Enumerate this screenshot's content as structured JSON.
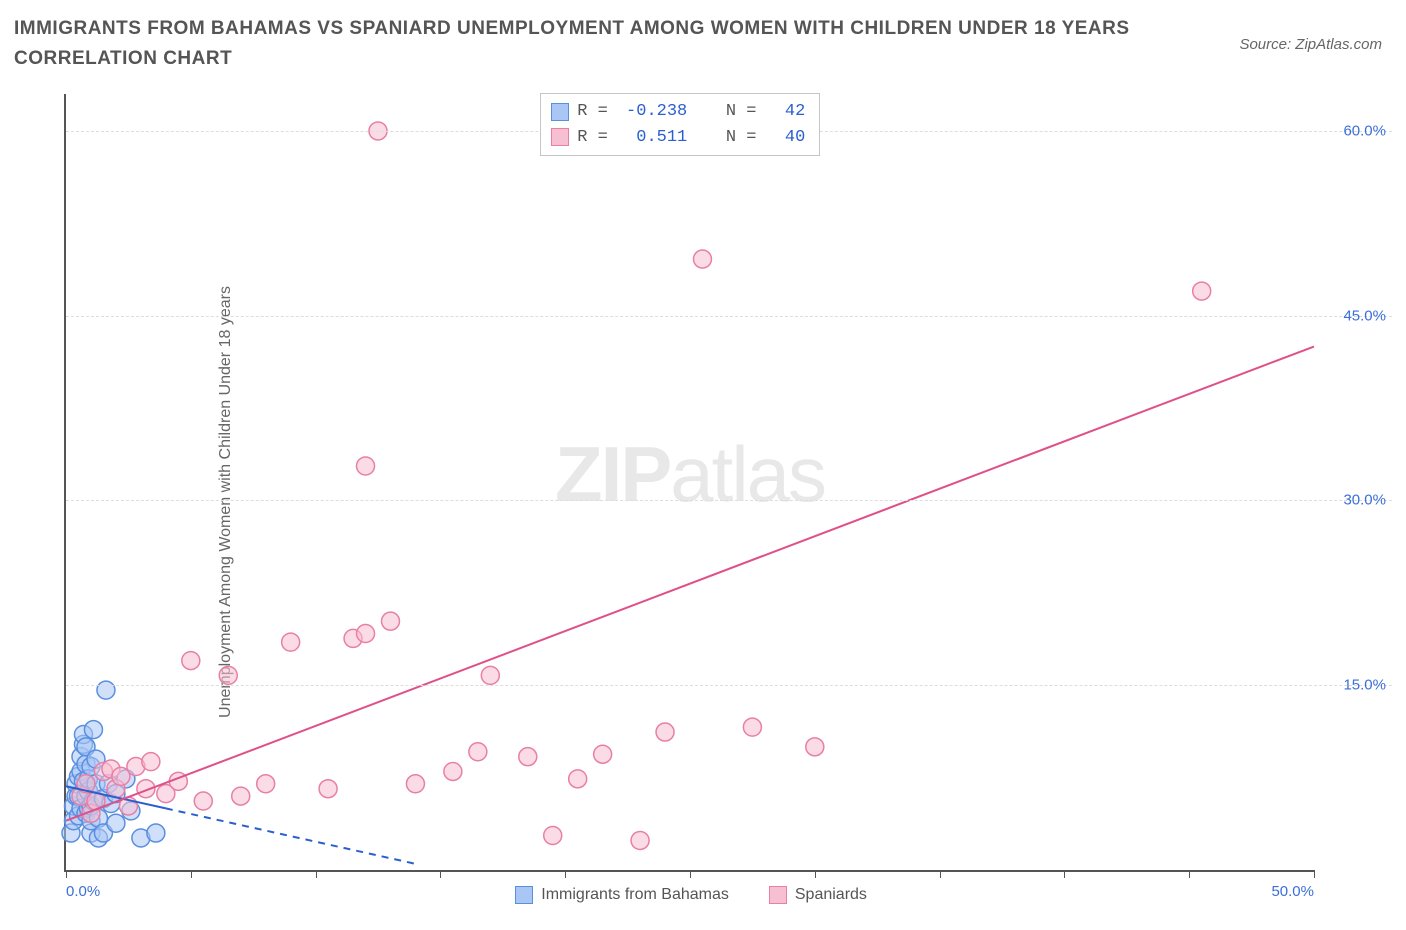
{
  "title": "IMMIGRANTS FROM BAHAMAS VS SPANIARD UNEMPLOYMENT AMONG WOMEN WITH CHILDREN UNDER 18 YEARS CORRELATION CHART",
  "source": "Source: ZipAtlas.com",
  "y_label": "Unemployment Among Women with Children Under 18 years",
  "watermark_bold": "ZIP",
  "watermark_rest": "atlas",
  "chart": {
    "type": "scatter",
    "xlim": [
      0,
      50
    ],
    "ylim": [
      0,
      63
    ],
    "x_ticks": [
      0,
      5,
      10,
      15,
      20,
      25,
      30,
      35,
      40,
      45,
      50
    ],
    "x_tick_labels": {
      "0": "0.0%",
      "50": "50.0%"
    },
    "y_ticks": [
      15,
      30,
      45,
      60
    ],
    "y_tick_labels": {
      "15": "15.0%",
      "30": "30.0%",
      "45": "45.0%",
      "60": "60.0%"
    },
    "background_color": "#ffffff",
    "grid_color": "#dddddd",
    "marker_radius": 9,
    "marker_stroke_width": 1.5,
    "series": [
      {
        "name": "Immigrants from Bahamas",
        "color_fill": "#a9c6f5",
        "color_stroke": "#5a8fe0",
        "fill_opacity": 0.55,
        "R": "-0.238",
        "N": "42",
        "trend": {
          "x1": 0,
          "y1": 6.8,
          "x2": 14,
          "y2": 0.5,
          "solid_until_x": 4.0,
          "color": "#2b5fd0",
          "width": 2
        },
        "points": [
          [
            0.2,
            3.0
          ],
          [
            0.3,
            4.0
          ],
          [
            0.3,
            5.2
          ],
          [
            0.4,
            6.0
          ],
          [
            0.4,
            7.0
          ],
          [
            0.5,
            4.4
          ],
          [
            0.5,
            6.0
          ],
          [
            0.5,
            7.6
          ],
          [
            0.6,
            5.0
          ],
          [
            0.6,
            8.0
          ],
          [
            0.6,
            9.2
          ],
          [
            0.7,
            10.2
          ],
          [
            0.7,
            11.0
          ],
          [
            0.7,
            7.2
          ],
          [
            0.8,
            4.6
          ],
          [
            0.8,
            6.0
          ],
          [
            0.8,
            8.6
          ],
          [
            0.8,
            10.0
          ],
          [
            0.9,
            5.0
          ],
          [
            0.9,
            6.4
          ],
          [
            0.9,
            7.4
          ],
          [
            1.0,
            3.0
          ],
          [
            1.0,
            4.0
          ],
          [
            1.0,
            5.2
          ],
          [
            1.0,
            8.4
          ],
          [
            1.1,
            11.4
          ],
          [
            1.1,
            5.6
          ],
          [
            1.2,
            7.0
          ],
          [
            1.2,
            9.0
          ],
          [
            1.3,
            2.6
          ],
          [
            1.3,
            4.2
          ],
          [
            1.5,
            3.0
          ],
          [
            1.5,
            5.8
          ],
          [
            1.7,
            7.0
          ],
          [
            1.8,
            5.4
          ],
          [
            2.0,
            3.8
          ],
          [
            2.0,
            6.2
          ],
          [
            2.4,
            7.4
          ],
          [
            2.6,
            4.8
          ],
          [
            3.0,
            2.6
          ],
          [
            3.6,
            3.0
          ],
          [
            1.6,
            14.6
          ]
        ]
      },
      {
        "name": "Spaniards",
        "color_fill": "#f7c0d2",
        "color_stroke": "#e87fa6",
        "fill_opacity": 0.55,
        "R": "0.511",
        "N": "40",
        "trend": {
          "x1": 0,
          "y1": 4.0,
          "x2": 50,
          "y2": 42.5,
          "solid_until_x": 50,
          "color": "#e05088",
          "width": 2
        },
        "points": [
          [
            0.6,
            6.0
          ],
          [
            0.8,
            7.0
          ],
          [
            1.0,
            4.6
          ],
          [
            1.2,
            5.6
          ],
          [
            1.5,
            8.0
          ],
          [
            1.8,
            8.2
          ],
          [
            2.0,
            6.6
          ],
          [
            2.2,
            7.6
          ],
          [
            2.5,
            5.2
          ],
          [
            2.8,
            8.4
          ],
          [
            3.2,
            6.6
          ],
          [
            3.4,
            8.8
          ],
          [
            4.0,
            6.2
          ],
          [
            4.5,
            7.2
          ],
          [
            5.0,
            17.0
          ],
          [
            5.5,
            5.6
          ],
          [
            6.5,
            15.8
          ],
          [
            8.0,
            7.0
          ],
          [
            9.0,
            18.5
          ],
          [
            10.5,
            6.6
          ],
          [
            11.5,
            18.8
          ],
          [
            12.0,
            19.2
          ],
          [
            12.0,
            32.8
          ],
          [
            12.5,
            60.0
          ],
          [
            13.0,
            20.2
          ],
          [
            15.5,
            8.0
          ],
          [
            16.5,
            9.6
          ],
          [
            17.0,
            15.8
          ],
          [
            18.5,
            9.2
          ],
          [
            19.5,
            2.8
          ],
          [
            20.5,
            7.4
          ],
          [
            21.5,
            9.4
          ],
          [
            23.0,
            2.4
          ],
          [
            24.0,
            11.2
          ],
          [
            25.5,
            49.6
          ],
          [
            27.5,
            11.6
          ],
          [
            30.0,
            10.0
          ],
          [
            45.5,
            47.0
          ],
          [
            14.0,
            7.0
          ],
          [
            7.0,
            6.0
          ]
        ]
      }
    ]
  },
  "colors": {
    "title": "#555555",
    "axis": "#555555",
    "tick_label": "#3b6fd8"
  }
}
